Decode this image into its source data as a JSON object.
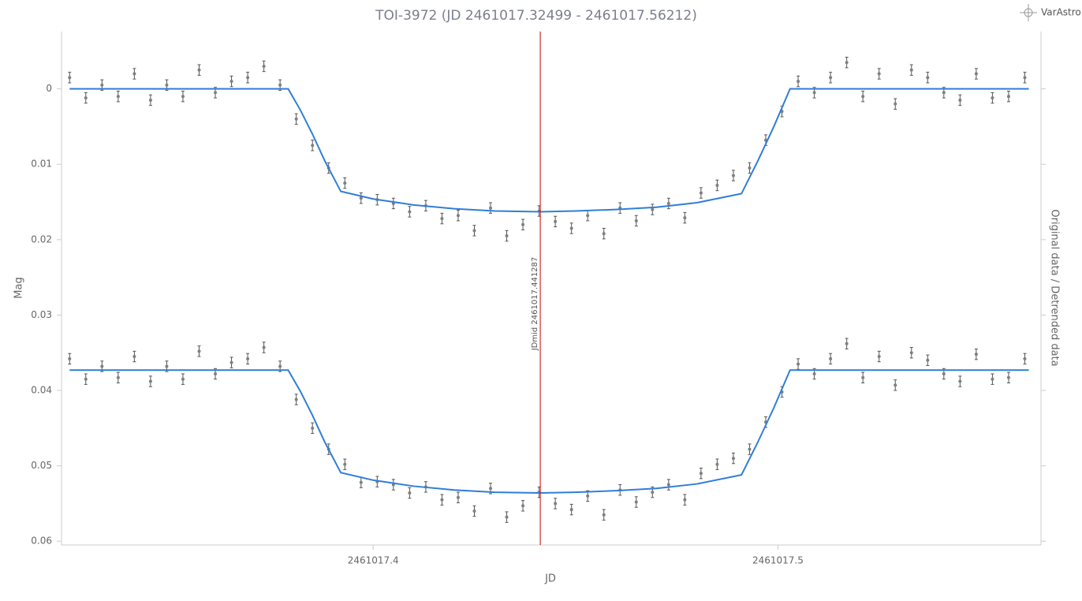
{
  "chart_data": {
    "type": "scatter",
    "title": "TOI-3972 (JD 2461017.32499 - 2461017.56212)",
    "brand": "VarAstro",
    "xlabel": "JD",
    "ylabel": "Mag",
    "y2label": "Original data / Detrended data",
    "xlim": [
      2461017.323,
      2461017.565
    ],
    "ylim": [
      -0.0076,
      0.0605
    ],
    "y_inverted": true,
    "xticks": [
      2461017.4,
      2461017.5
    ],
    "yticks": [
      0,
      0.01,
      0.02,
      0.03,
      0.04,
      0.05,
      0.06
    ],
    "vline": {
      "x": 2461017.441287,
      "label": "JDmid 2461017.441287",
      "color": "#cc0000"
    },
    "series": [
      {
        "type": "scatter",
        "color": "#7f7f7f",
        "error": 0.0007,
        "x": [
          2461017.325,
          2461017.329,
          2461017.333,
          2461017.337,
          2461017.341,
          2461017.345,
          2461017.349,
          2461017.353,
          2461017.357,
          2461017.361,
          2461017.365,
          2461017.369,
          2461017.373,
          2461017.377,
          2461017.381,
          2461017.385,
          2461017.389,
          2461017.393,
          2461017.397,
          2461017.401,
          2461017.405,
          2461017.409,
          2461017.413,
          2461017.417,
          2461017.421,
          2461017.425,
          2461017.429,
          2461017.433,
          2461017.437,
          2461017.441,
          2461017.445,
          2461017.449,
          2461017.453,
          2461017.457,
          2461017.461,
          2461017.465,
          2461017.469,
          2461017.473,
          2461017.477,
          2461017.481,
          2461017.485,
          2461017.489,
          2461017.493,
          2461017.497,
          2461017.501,
          2461017.505,
          2461017.509,
          2461017.513,
          2461017.517,
          2461017.521,
          2461017.525,
          2461017.529,
          2461017.533,
          2461017.537,
          2461017.541,
          2461017.545,
          2461017.549,
          2461017.553,
          2461017.557,
          2461017.561
        ],
        "values": [
          -0.0015,
          0.0012,
          -0.0005,
          0.001,
          -0.002,
          0.0015,
          -0.0005,
          0.001,
          -0.0025,
          0.0005,
          -0.001,
          -0.0015,
          -0.003,
          -0.0005,
          0.004,
          0.0075,
          0.0105,
          0.0125,
          0.0145,
          0.0147,
          0.0152,
          0.0163,
          0.0155,
          0.0172,
          0.0168,
          0.0188,
          0.0158,
          0.0195,
          0.018,
          0.0162,
          0.0176,
          0.0185,
          0.0168,
          0.0192,
          0.0158,
          0.0175,
          0.016,
          0.0152,
          0.0171,
          0.0138,
          0.0128,
          0.0115,
          0.0105,
          0.0068,
          0.003,
          -0.001,
          0.0005,
          -0.0015,
          -0.0035,
          0.001,
          -0.002,
          0.002,
          -0.0025,
          -0.0015,
          0.0005,
          0.0015,
          -0.002,
          0.0012,
          0.001,
          -0.0015
        ]
      },
      {
        "type": "scatter",
        "color": "#7f7f7f",
        "error": 0.0007,
        "x": [
          2461017.325,
          2461017.329,
          2461017.333,
          2461017.337,
          2461017.341,
          2461017.345,
          2461017.349,
          2461017.353,
          2461017.357,
          2461017.361,
          2461017.365,
          2461017.369,
          2461017.373,
          2461017.377,
          2461017.381,
          2461017.385,
          2461017.389,
          2461017.393,
          2461017.397,
          2461017.401,
          2461017.405,
          2461017.409,
          2461017.413,
          2461017.417,
          2461017.421,
          2461017.425,
          2461017.429,
          2461017.433,
          2461017.437,
          2461017.441,
          2461017.445,
          2461017.449,
          2461017.453,
          2461017.457,
          2461017.461,
          2461017.465,
          2461017.469,
          2461017.473,
          2461017.477,
          2461017.481,
          2461017.485,
          2461017.489,
          2461017.493,
          2461017.497,
          2461017.501,
          2461017.505,
          2461017.509,
          2461017.513,
          2461017.517,
          2461017.521,
          2461017.525,
          2461017.529,
          2461017.533,
          2461017.537,
          2461017.541,
          2461017.545,
          2461017.549,
          2461017.553,
          2461017.557,
          2461017.561
        ],
        "values": [
          0.0358,
          0.0385,
          0.0368,
          0.0383,
          0.0355,
          0.0388,
          0.0368,
          0.0385,
          0.0348,
          0.0378,
          0.0363,
          0.0358,
          0.0343,
          0.0368,
          0.0412,
          0.045,
          0.0478,
          0.0498,
          0.0522,
          0.0521,
          0.0525,
          0.0536,
          0.0528,
          0.0545,
          0.0542,
          0.056,
          0.053,
          0.0568,
          0.0553,
          0.0535,
          0.055,
          0.0558,
          0.054,
          0.0565,
          0.0532,
          0.0548,
          0.0535,
          0.0525,
          0.0545,
          0.051,
          0.0498,
          0.049,
          0.0478,
          0.0442,
          0.0402,
          0.0365,
          0.0378,
          0.0358,
          0.0338,
          0.0383,
          0.0355,
          0.0393,
          0.035,
          0.036,
          0.0378,
          0.0388,
          0.0352,
          0.0385,
          0.0383,
          0.0358
        ]
      },
      {
        "type": "line",
        "color": "#2f7ed8",
        "x": [
          2461017.325,
          2461017.379,
          2461017.382,
          2461017.385,
          2461017.388,
          2461017.392,
          2461017.4,
          2461017.41,
          2461017.42,
          2461017.43,
          2461017.4413,
          2461017.45,
          2461017.46,
          2461017.47,
          2461017.48,
          2461017.491,
          2461017.495,
          2461017.499,
          2461017.503,
          2461017.562
        ],
        "values": [
          0,
          0,
          0.0028,
          0.006,
          0.0095,
          0.0136,
          0.0146,
          0.0154,
          0.0159,
          0.0162,
          0.0163,
          0.0162,
          0.016,
          0.0157,
          0.0151,
          0.0139,
          0.0096,
          0.005,
          0,
          0
        ]
      },
      {
        "type": "line",
        "color": "#2f7ed8",
        "x": [
          2461017.325,
          2461017.379,
          2461017.382,
          2461017.385,
          2461017.388,
          2461017.392,
          2461017.4,
          2461017.41,
          2461017.42,
          2461017.43,
          2461017.4413,
          2461017.45,
          2461017.46,
          2461017.47,
          2461017.48,
          2461017.491,
          2461017.495,
          2461017.499,
          2461017.503,
          2461017.562
        ],
        "values": [
          0.0373,
          0.0373,
          0.0401,
          0.0433,
          0.0468,
          0.0509,
          0.0519,
          0.0527,
          0.0532,
          0.0535,
          0.0536,
          0.0535,
          0.0533,
          0.053,
          0.0524,
          0.0512,
          0.0469,
          0.0423,
          0.0373,
          0.0373
        ]
      }
    ]
  }
}
